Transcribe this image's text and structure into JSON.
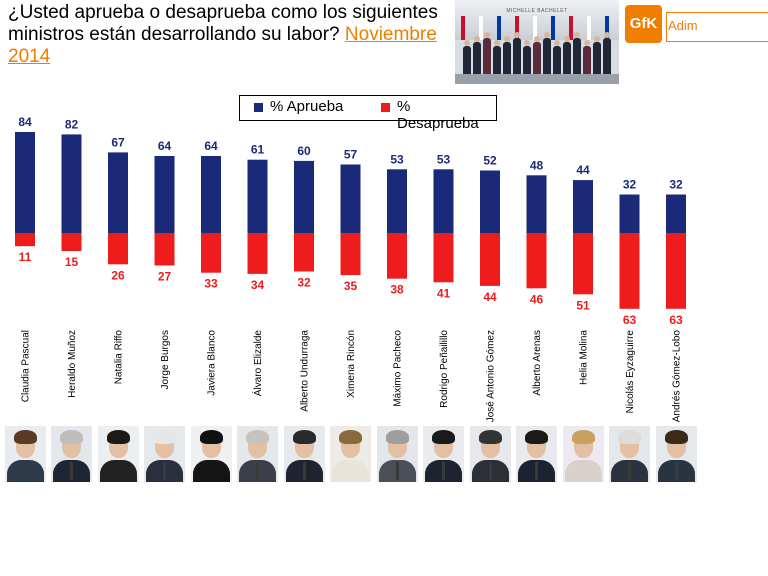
{
  "header": {
    "title_line": "¿Usted aprueba o desaprueba como los siguientes ministros están desarrollando su labor?",
    "title_date": "Noviembre 2014",
    "banner_caption": "MICHELLE BACHELET",
    "logo_text": "GfK",
    "logo_tag": "Adim"
  },
  "colors": {
    "approve": "#1b2a78",
    "disapprove": "#ee1c1c",
    "accent": "#f07d00"
  },
  "chart_data": {
    "type": "bar",
    "title": "¿Usted aprueba o desaprueba como los siguientes ministros están desarrollando su labor? Noviembre 2014",
    "legend": "top-center",
    "categories": [
      "Claudia Pascual",
      "Heraldo Muñoz",
      "Natalia Riffo",
      "Jorge Burgos",
      "Javiera Blanco",
      "Álvaro Elizalde",
      "Alberto Undurraga",
      "Ximena Rincón",
      "Máximo Pacheco",
      "Rodrigo Peñailillo",
      "José Antonio Gómez",
      "Alberto Arenas",
      "Helia Molina",
      "Nicolás Eyzaguirre",
      "Andrés Gómez-Lobo"
    ],
    "series": [
      {
        "name": "% Aprueba",
        "values": [
          84,
          82,
          67,
          64,
          64,
          61,
          60,
          57,
          53,
          53,
          52,
          48,
          44,
          32,
          32
        ]
      },
      {
        "name": "% Desaprueba",
        "values": [
          11,
          15,
          26,
          27,
          33,
          34,
          32,
          35,
          38,
          41,
          44,
          46,
          51,
          63,
          63
        ]
      }
    ]
  }
}
